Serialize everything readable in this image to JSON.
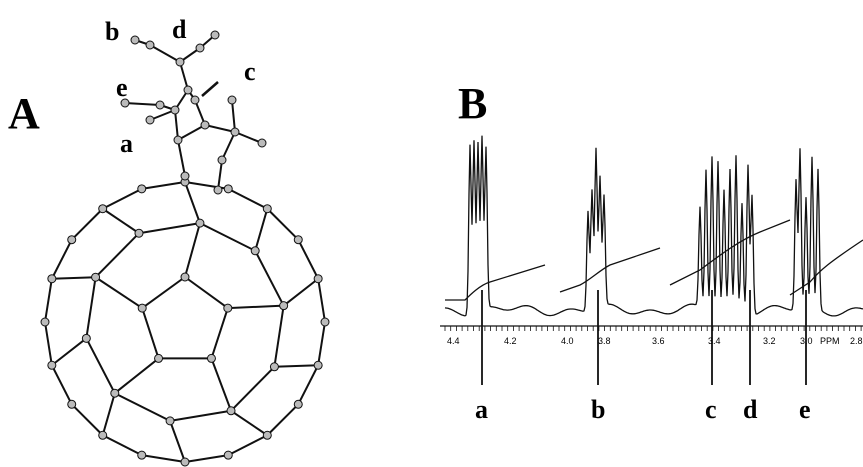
{
  "panel_a": {
    "label": "A",
    "atom_labels": [
      "b",
      "d",
      "c",
      "e",
      "a"
    ]
  },
  "panel_b": {
    "label": "B",
    "axis_ticks": [
      "4.4",
      "4.2",
      "4.0",
      "3.8",
      "3.6",
      "3.4",
      "3.2",
      "3.0",
      "PPM",
      "2.8"
    ],
    "peak_labels": [
      "a",
      "b",
      "c",
      "d",
      "e"
    ]
  }
}
